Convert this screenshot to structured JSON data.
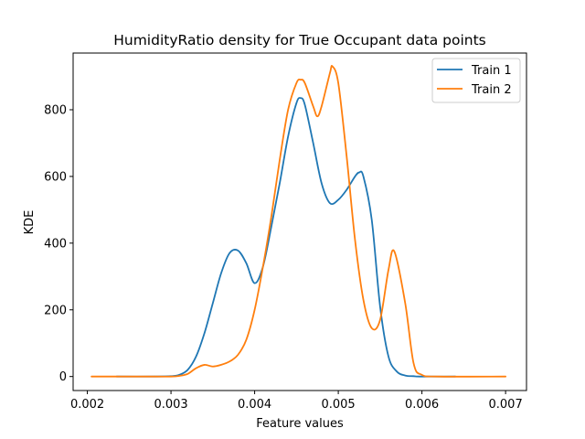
{
  "chart_data": {
    "type": "line",
    "title": "HumidityRatio density for True Occupant data points",
    "xlabel": "Feature values",
    "ylabel": "KDE",
    "xlim": [
      0.00183,
      0.00725
    ],
    "ylim": [
      -42,
      970
    ],
    "x_ticks": [
      0.002,
      0.003,
      0.004,
      0.005,
      0.006,
      0.007
    ],
    "x_tick_labels": [
      "0.002",
      "0.003",
      "0.004",
      "0.005",
      "0.006",
      "0.007"
    ],
    "y_ticks": [
      0,
      200,
      400,
      600,
      800
    ],
    "y_tick_labels": [
      "0",
      "200",
      "400",
      "600",
      "800"
    ],
    "grid": false,
    "legend_position": "top-right",
    "series": [
      {
        "name": "Train 1",
        "color": "#1f77b4",
        "x": [
          0.00235,
          0.0028,
          0.003,
          0.0031,
          0.0032,
          0.0033,
          0.0034,
          0.0035,
          0.0036,
          0.0037,
          0.0038,
          0.0039,
          0.004,
          0.0041,
          0.0042,
          0.0043,
          0.0044,
          0.0045,
          0.00455,
          0.0046,
          0.0047,
          0.0048,
          0.0049,
          0.005,
          0.0051,
          0.0052,
          0.00525,
          0.0053,
          0.0054,
          0.0055,
          0.0056,
          0.0057,
          0.0058,
          0.0059,
          0.006,
          0.0064
        ],
        "y": [
          0,
          0,
          1,
          5,
          20,
          60,
          130,
          220,
          310,
          370,
          378,
          340,
          280,
          330,
          450,
          580,
          720,
          820,
          835,
          815,
          700,
          580,
          520,
          530,
          560,
          600,
          612,
          600,
          470,
          210,
          60,
          15,
          3,
          1,
          0,
          0
        ]
      },
      {
        "name": "Train 2",
        "color": "#ff7f0e",
        "x": [
          0.00205,
          0.0028,
          0.003,
          0.0031,
          0.0032,
          0.0033,
          0.0034,
          0.0035,
          0.0036,
          0.0037,
          0.0038,
          0.0039,
          0.004,
          0.0041,
          0.0042,
          0.0043,
          0.0044,
          0.0045,
          0.00455,
          0.0046,
          0.0047,
          0.00475,
          0.0048,
          0.0049,
          0.00493,
          0.005,
          0.0051,
          0.0052,
          0.0053,
          0.0054,
          0.0055,
          0.0056,
          0.00567,
          0.0058,
          0.0059,
          0.006,
          0.0062,
          0.007
        ],
        "y": [
          0,
          0,
          0,
          2,
          8,
          25,
          35,
          30,
          35,
          45,
          65,
          110,
          200,
          330,
          480,
          650,
          800,
          880,
          890,
          880,
          810,
          780,
          810,
          910,
          930,
          880,
          660,
          410,
          230,
          145,
          170,
          320,
          375,
          220,
          40,
          5,
          0,
          0
        ]
      }
    ]
  }
}
